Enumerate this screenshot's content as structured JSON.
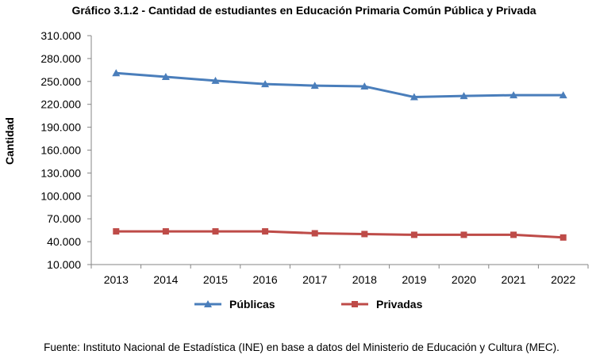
{
  "title": "Gráfico 3.1.2 - Cantidad de estudiantes en Educación Primaria Común Pública y Privada",
  "source": "Fuente: Instituto Nacional de Estadística (INE) en base a datos del Ministerio de Educación y Cultura (MEC).",
  "chart_data": {
    "type": "line",
    "title": "Gráfico 3.1.2 - Cantidad de estudiantes en Educación Primaria Común Pública y Privada",
    "xlabel": "",
    "ylabel": "Cantidad",
    "categories": [
      "2013",
      "2014",
      "2015",
      "2016",
      "2017",
      "2018",
      "2019",
      "2020",
      "2021",
      "2022"
    ],
    "ylim": [
      10000,
      310000
    ],
    "yticks": [
      10000,
      40000,
      70000,
      100000,
      130000,
      160000,
      190000,
      220000,
      250000,
      280000,
      310000
    ],
    "ytick_labels": [
      "10.000",
      "40.000",
      "70.000",
      "100.000",
      "130.000",
      "160.000",
      "190.000",
      "220.000",
      "250.000",
      "280.000",
      "310.000"
    ],
    "grid": false,
    "legend_position": "bottom",
    "series": [
      {
        "name": "Públicas",
        "color": "#4a7ebb",
        "marker": "triangle",
        "values": [
          261000,
          256000,
          251000,
          246500,
          244500,
          243500,
          229500,
          231000,
          232000,
          232000
        ]
      },
      {
        "name": "Privadas",
        "color": "#be4b48",
        "marker": "square",
        "values": [
          53500,
          53500,
          53500,
          53500,
          51000,
          50000,
          49000,
          49000,
          49000,
          45500
        ]
      }
    ]
  }
}
